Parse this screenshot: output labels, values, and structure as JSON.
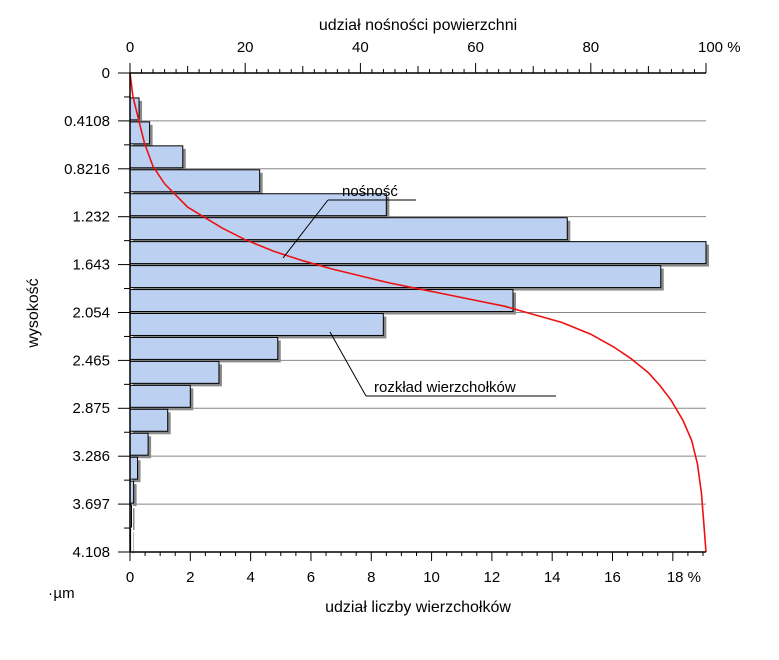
{
  "chart_data": {
    "type": "bar",
    "orientation": "horizontal",
    "top_axis": {
      "label": "udział nośności powierzchni",
      "ticks": [
        0,
        20,
        40,
        60,
        80,
        100
      ],
      "tick_labels": [
        "0",
        "20",
        "40",
        "60",
        "80",
        "100 %"
      ],
      "range": [
        0,
        100
      ]
    },
    "bottom_axis": {
      "label": "udział liczby wierzchołków",
      "ticks": [
        0,
        2,
        4,
        6,
        8,
        10,
        12,
        14,
        16,
        18
      ],
      "tick_labels": [
        "0",
        "2",
        "4",
        "6",
        "8",
        "10",
        "12",
        "14",
        "16",
        "18 %"
      ],
      "range": [
        0,
        19.1
      ]
    },
    "left_axis": {
      "label": "wysokość",
      "unit": "µm",
      "ticks": [
        0,
        0.4108,
        0.8216,
        1.232,
        1.643,
        2.054,
        2.465,
        2.875,
        3.286,
        3.697,
        4.108
      ],
      "tick_labels": [
        "0",
        "0.4108",
        "0.8216",
        "1.232",
        "1.643",
        "2.054",
        "2.465",
        "2.875",
        "3.286",
        "3.697",
        "4.108"
      ],
      "range": [
        0,
        4.108
      ]
    },
    "grid": true,
    "series": [
      {
        "name": "rozkład wierzchołków",
        "bin_width": 0.2054,
        "values": [
          0,
          0.3,
          0.65,
          1.75,
          4.3,
          8.5,
          14.5,
          19.1,
          17.6,
          12.7,
          8.4,
          4.9,
          2.95,
          2.0,
          1.25,
          0.6,
          0.25,
          0.12,
          0.05,
          0.02
        ],
        "color": "#bcd0f2"
      },
      {
        "name": "nośność",
        "color": "#ee1111",
        "x_percent": [
          0,
          0.5,
          1.5,
          2.5,
          4,
          6,
          8,
          10,
          13,
          16,
          20,
          25,
          30,
          35,
          40,
          45,
          50,
          55,
          60,
          65,
          70,
          75,
          80,
          84,
          87,
          90,
          92,
          94,
          96,
          97.5,
          98.5,
          99.2,
          99.6,
          100
        ],
        "height_um": [
          0,
          0.2,
          0.4,
          0.6,
          0.8,
          0.95,
          1.05,
          1.15,
          1.24,
          1.33,
          1.43,
          1.53,
          1.61,
          1.68,
          1.74,
          1.8,
          1.85,
          1.9,
          1.95,
          2.0,
          2.07,
          2.14,
          2.24,
          2.35,
          2.45,
          2.57,
          2.68,
          2.81,
          2.98,
          3.15,
          3.35,
          3.6,
          3.85,
          4.108
        ]
      }
    ],
    "annotations": [
      "nośność",
      "rozkład wierzchołków"
    ]
  }
}
